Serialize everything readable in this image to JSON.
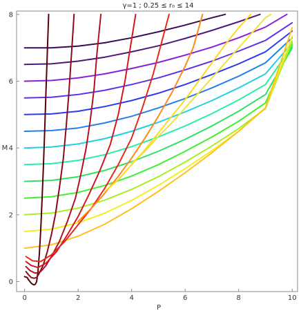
{
  "chart_data": {
    "type": "line",
    "title": "γ=1 ;    0.25 ≤ r₀ ≤ 14",
    "xlabel": "P",
    "ylabel": "M",
    "xlim": [
      -0.3,
      10.2
    ],
    "ylim": [
      -0.3,
      8.1
    ],
    "x_ticks": [
      0,
      2,
      4,
      6,
      8,
      10
    ],
    "y_ticks": [
      0,
      2,
      4,
      6,
      8
    ],
    "grid": false,
    "frame": true,
    "family_a": {
      "description_colors_from_dark_to_light": "steep curves, one per color",
      "series": [
        {
          "color": "#5a0008",
          "points": [
            [
              0.0,
              0.15
            ],
            [
              0.1,
              0.12
            ],
            [
              0.15,
              0.05
            ],
            [
              0.2,
              0.0
            ],
            [
              0.25,
              -0.05
            ],
            [
              0.3,
              -0.08
            ],
            [
              0.35,
              -0.1
            ],
            [
              0.4,
              -0.08
            ],
            [
              0.45,
              0.0
            ],
            [
              0.5,
              0.3
            ],
            [
              0.55,
              0.8
            ],
            [
              0.6,
              1.5
            ],
            [
              0.65,
              2.4
            ],
            [
              0.7,
              3.4
            ],
            [
              0.75,
              4.5
            ],
            [
              0.8,
              5.7
            ],
            [
              0.85,
              6.9
            ],
            [
              0.9,
              8.0
            ]
          ]
        },
        {
          "color": "#8b0a18",
          "points": [
            [
              0.05,
              0.3
            ],
            [
              0.15,
              0.2
            ],
            [
              0.25,
              0.12
            ],
            [
              0.35,
              0.1
            ],
            [
              0.45,
              0.12
            ],
            [
              0.55,
              0.25
            ],
            [
              0.7,
              0.5
            ],
            [
              0.85,
              0.9
            ],
            [
              1.0,
              1.4
            ],
            [
              1.15,
              2.0
            ],
            [
              1.3,
              2.8
            ],
            [
              1.45,
              3.7
            ],
            [
              1.55,
              4.6
            ],
            [
              1.65,
              5.6
            ],
            [
              1.75,
              6.8
            ],
            [
              1.85,
              8.0
            ]
          ]
        },
        {
          "color": "#b01020",
          "points": [
            [
              0.05,
              0.45
            ],
            [
              0.2,
              0.33
            ],
            [
              0.4,
              0.25
            ],
            [
              0.6,
              0.3
            ],
            [
              0.8,
              0.48
            ],
            [
              1.0,
              0.75
            ],
            [
              1.3,
              1.2
            ],
            [
              1.6,
              1.8
            ],
            [
              1.9,
              2.5
            ],
            [
              2.1,
              3.2
            ],
            [
              2.3,
              4.0
            ],
            [
              2.45,
              4.8
            ],
            [
              2.6,
              5.8
            ],
            [
              2.7,
              6.8
            ],
            [
              2.85,
              8.0
            ]
          ]
        },
        {
          "color": "#d01820",
          "points": [
            [
              0.05,
              0.6
            ],
            [
              0.25,
              0.48
            ],
            [
              0.5,
              0.42
            ],
            [
              0.8,
              0.55
            ],
            [
              1.2,
              0.9
            ],
            [
              1.6,
              1.4
            ],
            [
              2.0,
              1.95
            ],
            [
              2.4,
              2.6
            ],
            [
              2.8,
              3.3
            ],
            [
              3.2,
              4.1
            ],
            [
              3.5,
              5.0
            ],
            [
              3.75,
              6.0
            ],
            [
              3.95,
              7.0
            ],
            [
              4.15,
              8.0
            ]
          ]
        },
        {
          "color": "#e82818",
          "points": [
            [
              0.05,
              0.75
            ],
            [
              0.3,
              0.62
            ],
            [
              0.6,
              0.6
            ],
            [
              1.0,
              0.8
            ],
            [
              1.5,
              1.2
            ],
            [
              2.0,
              1.7
            ],
            [
              2.5,
              2.2
            ],
            [
              3.0,
              2.8
            ],
            [
              3.5,
              3.5
            ],
            [
              4.0,
              4.3
            ],
            [
              4.4,
              5.2
            ],
            [
              4.8,
              6.2
            ],
            [
              5.1,
              7.1
            ],
            [
              5.4,
              8.0
            ]
          ]
        },
        {
          "color": "#ff8a1a",
          "points": [
            [
              2.0,
              1.8
            ],
            [
              2.5,
              2.2
            ],
            [
              3.0,
              2.65
            ],
            [
              3.5,
              3.15
            ],
            [
              4.0,
              3.7
            ],
            [
              4.5,
              4.3
            ],
            [
              5.0,
              4.95
            ],
            [
              5.5,
              5.65
            ],
            [
              6.0,
              6.45
            ],
            [
              6.3,
              7.0
            ],
            [
              6.65,
              8.0
            ]
          ]
        },
        {
          "color": "#ffd820",
          "points": [
            [
              3.0,
              2.7
            ],
            [
              3.5,
              3.05
            ],
            [
              4.0,
              3.5
            ],
            [
              4.5,
              3.95
            ],
            [
              5.0,
              4.45
            ],
            [
              5.5,
              4.95
            ],
            [
              6.0,
              5.45
            ],
            [
              6.5,
              6.0
            ],
            [
              7.0,
              6.55
            ],
            [
              7.5,
              7.1
            ],
            [
              8.0,
              7.6
            ],
            [
              8.45,
              8.0
            ]
          ]
        },
        {
          "color": "#f0e040",
          "points": [
            [
              4.0,
              3.55
            ],
            [
              4.5,
              3.9
            ],
            [
              5.0,
              4.35
            ],
            [
              5.5,
              4.75
            ],
            [
              6.0,
              5.2
            ],
            [
              6.5,
              5.65
            ],
            [
              7.0,
              6.1
            ],
            [
              7.5,
              6.55
            ],
            [
              8.0,
              7.0
            ],
            [
              8.5,
              7.45
            ],
            [
              9.0,
              7.9
            ],
            [
              9.2,
              8.0
            ]
          ]
        }
      ]
    },
    "family_b": {
      "description": "shallow curves starting on M axis, one per starting value",
      "series": [
        {
          "color": "#3a0a50",
          "points": [
            [
              0,
              7.0
            ],
            [
              1,
              7.0
            ],
            [
              2,
              7.05
            ],
            [
              3,
              7.15
            ],
            [
              4,
              7.3
            ],
            [
              5,
              7.48
            ],
            [
              6,
              7.68
            ],
            [
              7,
              7.9
            ],
            [
              7.5,
              8.0
            ]
          ]
        },
        {
          "color": "#50157a",
          "points": [
            [
              0,
              6.5
            ],
            [
              1,
              6.52
            ],
            [
              2,
              6.6
            ],
            [
              3,
              6.72
            ],
            [
              4,
              6.88
            ],
            [
              5,
              7.06
            ],
            [
              6,
              7.28
            ],
            [
              7,
              7.52
            ],
            [
              8,
              7.78
            ],
            [
              8.8,
              8.0
            ]
          ]
        },
        {
          "color": "#8a1ed8",
          "points": [
            [
              0,
              6.0
            ],
            [
              1,
              6.02
            ],
            [
              2,
              6.1
            ],
            [
              3,
              6.22
            ],
            [
              4,
              6.38
            ],
            [
              5,
              6.56
            ],
            [
              6,
              6.78
            ],
            [
              7,
              7.02
            ],
            [
              8,
              7.3
            ],
            [
              9,
              7.62
            ],
            [
              9.8,
              8.0
            ]
          ]
        },
        {
          "color": "#6030e8",
          "points": [
            [
              0,
              5.5
            ],
            [
              1,
              5.52
            ],
            [
              2,
              5.6
            ],
            [
              3,
              5.73
            ],
            [
              4,
              5.9
            ],
            [
              5,
              6.1
            ],
            [
              6,
              6.34
            ],
            [
              7,
              6.6
            ],
            [
              8,
              6.9
            ],
            [
              9,
              7.22
            ],
            [
              10,
              7.75
            ]
          ]
        },
        {
          "color": "#2a3af0",
          "points": [
            [
              0,
              5.0
            ],
            [
              1,
              5.02
            ],
            [
              2,
              5.1
            ],
            [
              3,
              5.24
            ],
            [
              4,
              5.42
            ],
            [
              5,
              5.64
            ],
            [
              6,
              5.9
            ],
            [
              7,
              6.2
            ],
            [
              8,
              6.52
            ],
            [
              9,
              6.88
            ],
            [
              10,
              7.5
            ]
          ]
        },
        {
          "color": "#2080e8",
          "points": [
            [
              0,
              4.5
            ],
            [
              1,
              4.52
            ],
            [
              2,
              4.6
            ],
            [
              3,
              4.75
            ],
            [
              4,
              4.95
            ],
            [
              5,
              5.2
            ],
            [
              6,
              5.48
            ],
            [
              7,
              5.8
            ],
            [
              8,
              6.15
            ],
            [
              9,
              6.55
            ],
            [
              10,
              7.3
            ]
          ]
        },
        {
          "color": "#20d0e0",
          "points": [
            [
              0,
              4.0
            ],
            [
              1,
              4.03
            ],
            [
              2,
              4.12
            ],
            [
              3,
              4.28
            ],
            [
              4,
              4.5
            ],
            [
              5,
              4.77
            ],
            [
              6,
              5.08
            ],
            [
              7,
              5.42
            ],
            [
              8,
              5.8
            ],
            [
              9,
              6.22
            ],
            [
              10,
              7.15
            ]
          ]
        },
        {
          "color": "#28f0a0",
          "points": [
            [
              0,
              3.5
            ],
            [
              1,
              3.53
            ],
            [
              2,
              3.63
            ],
            [
              3,
              3.8
            ],
            [
              4,
              4.04
            ],
            [
              5,
              4.33
            ],
            [
              6,
              4.66
            ],
            [
              7,
              5.03
            ],
            [
              8,
              5.44
            ],
            [
              9,
              5.9
            ],
            [
              10,
              7.05
            ]
          ]
        },
        {
          "color": "#30e060",
          "points": [
            [
              0,
              3.0
            ],
            [
              1,
              3.03
            ],
            [
              2,
              3.14
            ],
            [
              3,
              3.33
            ],
            [
              4,
              3.59
            ],
            [
              5,
              3.9
            ],
            [
              6,
              4.26
            ],
            [
              7,
              4.66
            ],
            [
              8,
              5.1
            ],
            [
              9,
              5.6
            ],
            [
              10,
              7.0
            ]
          ]
        },
        {
          "color": "#40f030",
          "points": [
            [
              0,
              2.5
            ],
            [
              1,
              2.54
            ],
            [
              2,
              2.67
            ],
            [
              3,
              2.88
            ],
            [
              4,
              3.16
            ],
            [
              5,
              3.5
            ],
            [
              6,
              3.9
            ],
            [
              7,
              4.33
            ],
            [
              8,
              4.8
            ],
            [
              9,
              5.35
            ],
            [
              10,
              7.1
            ]
          ]
        },
        {
          "color": "#a8f020",
          "points": [
            [
              0,
              2.0
            ],
            [
              1,
              2.05
            ],
            [
              2,
              2.2
            ],
            [
              3,
              2.44
            ],
            [
              4,
              2.76
            ],
            [
              5,
              3.14
            ],
            [
              6,
              3.58
            ],
            [
              7,
              4.06
            ],
            [
              8,
              4.58
            ],
            [
              9,
              5.18
            ],
            [
              10,
              7.2
            ]
          ]
        },
        {
          "color": "#f0f020",
          "points": [
            [
              0,
              1.5
            ],
            [
              1,
              1.57
            ],
            [
              2,
              1.76
            ],
            [
              3,
              2.05
            ],
            [
              4,
              2.43
            ],
            [
              5,
              2.88
            ],
            [
              6,
              3.38
            ],
            [
              7,
              3.92
            ],
            [
              8,
              4.5
            ],
            [
              9,
              5.2
            ],
            [
              10,
              7.35
            ]
          ]
        },
        {
          "color": "#ffc020",
          "points": [
            [
              0,
              1.0
            ],
            [
              1,
              1.1
            ],
            [
              2,
              1.36
            ],
            [
              3,
              1.72
            ],
            [
              4,
              2.18
            ],
            [
              5,
              2.7
            ],
            [
              6,
              3.26
            ],
            [
              7,
              3.86
            ],
            [
              8,
              4.5
            ],
            [
              9,
              5.2
            ],
            [
              10,
              7.6
            ]
          ]
        }
      ]
    }
  }
}
